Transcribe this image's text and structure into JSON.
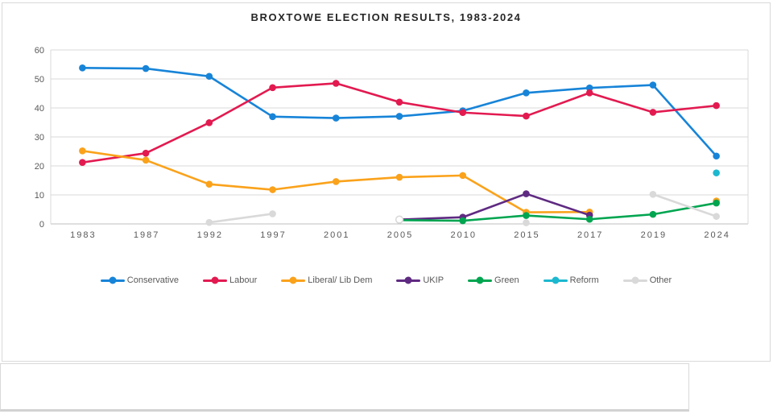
{
  "chart_data": {
    "type": "line",
    "title": "BROXTOWE ELECTION RESULTS, 1983-2024",
    "categories": [
      "1983",
      "1987",
      "1992",
      "1997",
      "2001",
      "2005",
      "2010",
      "2015",
      "2017",
      "2019",
      "2024"
    ],
    "series": [
      {
        "name": "Conservative",
        "color": "#1784D8",
        "values": [
          53.8,
          53.6,
          50.9,
          37.0,
          36.5,
          37.1,
          39.0,
          45.2,
          46.9,
          47.9,
          23.4
        ]
      },
      {
        "name": "Labour",
        "color": "#E21A50",
        "values": [
          21.2,
          24.4,
          34.9,
          47.0,
          48.5,
          42.0,
          38.4,
          37.2,
          45.2,
          38.5,
          40.8
        ]
      },
      {
        "name": "Liberal/ Lib Dem",
        "color": "#FAA21B",
        "values": [
          25.2,
          22.0,
          13.7,
          11.8,
          14.6,
          16.1,
          16.7,
          4.0,
          4.1,
          null,
          7.9
        ]
      },
      {
        "name": "UKIP",
        "color": "#5F2A82",
        "values": [
          null,
          null,
          null,
          null,
          null,
          1.5,
          2.3,
          10.4,
          3.0,
          null,
          null
        ]
      },
      {
        "name": "Green",
        "color": "#00A550",
        "values": [
          null,
          null,
          null,
          null,
          null,
          1.3,
          1.1,
          2.9,
          1.6,
          3.3,
          7.2
        ]
      },
      {
        "name": "Reform",
        "color": "#1CB8CF",
        "values": [
          null,
          null,
          null,
          null,
          null,
          null,
          null,
          null,
          null,
          null,
          17.6
        ]
      },
      {
        "name": "Other",
        "color": "#D9D9D9",
        "values": [
          null,
          null,
          0.5,
          3.5,
          null,
          1.5,
          null,
          0.4,
          null,
          10.2,
          2.6
        ],
        "open_markers": [
          5
        ]
      }
    ],
    "ylim": [
      0,
      60
    ],
    "ytick_step": 10,
    "y_tick_labels": [
      "0",
      "10",
      "20",
      "30",
      "40",
      "50",
      "60"
    ],
    "grid": true,
    "legend_position": "bottom"
  },
  "colors": {
    "gridline": "#D9D9D9",
    "axis_line": "#BFBFBF",
    "plot_border": "#D9D9D9",
    "tick_text": "#595959",
    "title_text": "#262626",
    "panel_border": "#D9D9D9"
  }
}
